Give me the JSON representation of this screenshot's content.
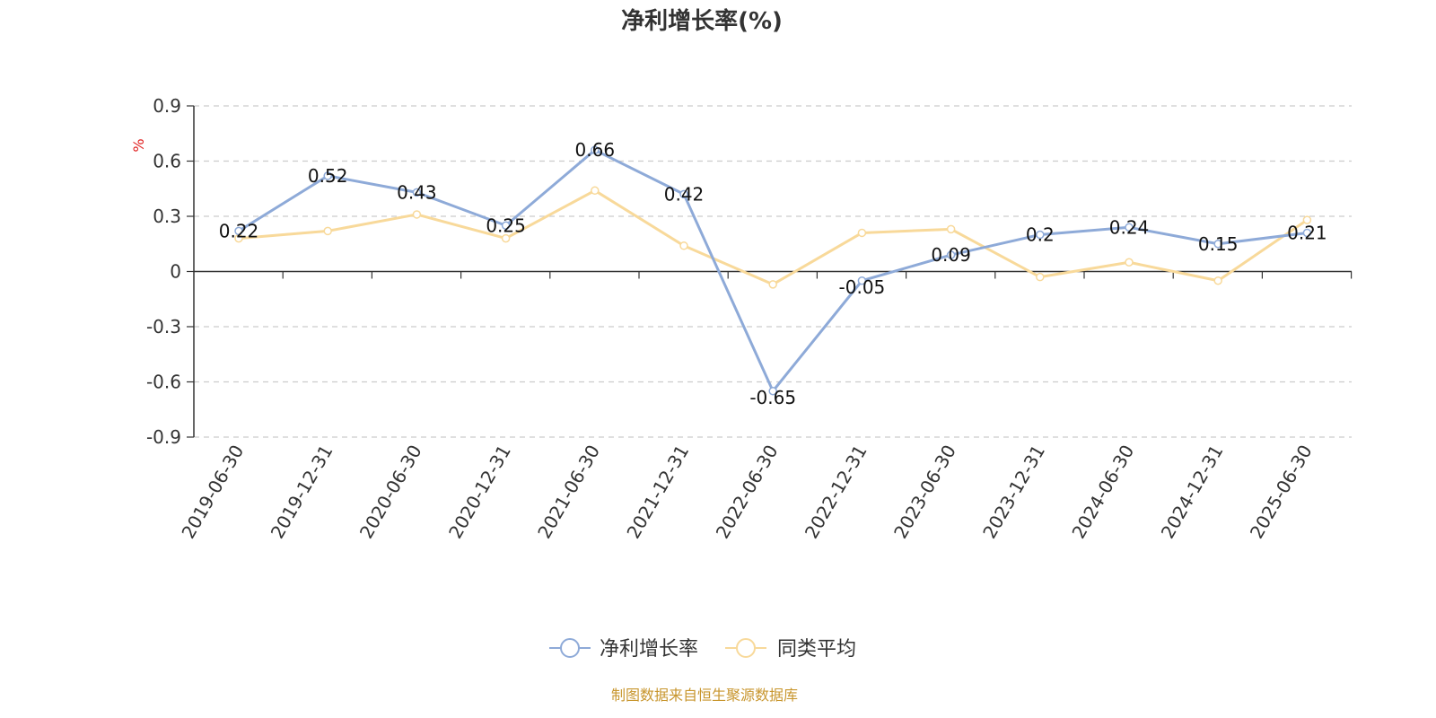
{
  "chart_data": {
    "type": "line",
    "title": "净利增长率(%)",
    "ylabel": "%",
    "categories": [
      "2019-06-30",
      "2019-12-31",
      "2020-06-30",
      "2020-12-31",
      "2021-06-30",
      "2021-12-31",
      "2022-06-30",
      "2022-12-31",
      "2023-06-30",
      "2023-12-31",
      "2024-06-30",
      "2024-12-31",
      "2025-06-30"
    ],
    "ylim": [
      -0.9,
      0.9
    ],
    "yticks": [
      "0.9",
      "0.6",
      "0.3",
      "0",
      "-0.3",
      "-0.6",
      "-0.9"
    ],
    "grid": true,
    "legend_position": "bottom",
    "series": [
      {
        "name": "净利增长率",
        "color": "#8eaad8",
        "values": [
          0.22,
          0.52,
          0.43,
          0.25,
          0.66,
          0.42,
          -0.65,
          -0.05,
          0.09,
          0.2,
          0.24,
          0.15,
          0.21
        ],
        "labels": [
          "0.22",
          "0.52",
          "0.43",
          "0.25",
          "0.66",
          "0.42",
          "-0.65",
          "-0.05",
          "0.09",
          "0.2",
          "0.24",
          "0.15",
          "0.21"
        ]
      },
      {
        "name": "同类平均",
        "color": "#f8d99a",
        "values": [
          0.18,
          0.22,
          0.31,
          0.18,
          0.44,
          0.14,
          -0.07,
          0.21,
          0.23,
          -0.03,
          0.05,
          -0.05,
          0.28
        ]
      }
    ]
  },
  "source_text": "制图数据来自恒生聚源数据库"
}
